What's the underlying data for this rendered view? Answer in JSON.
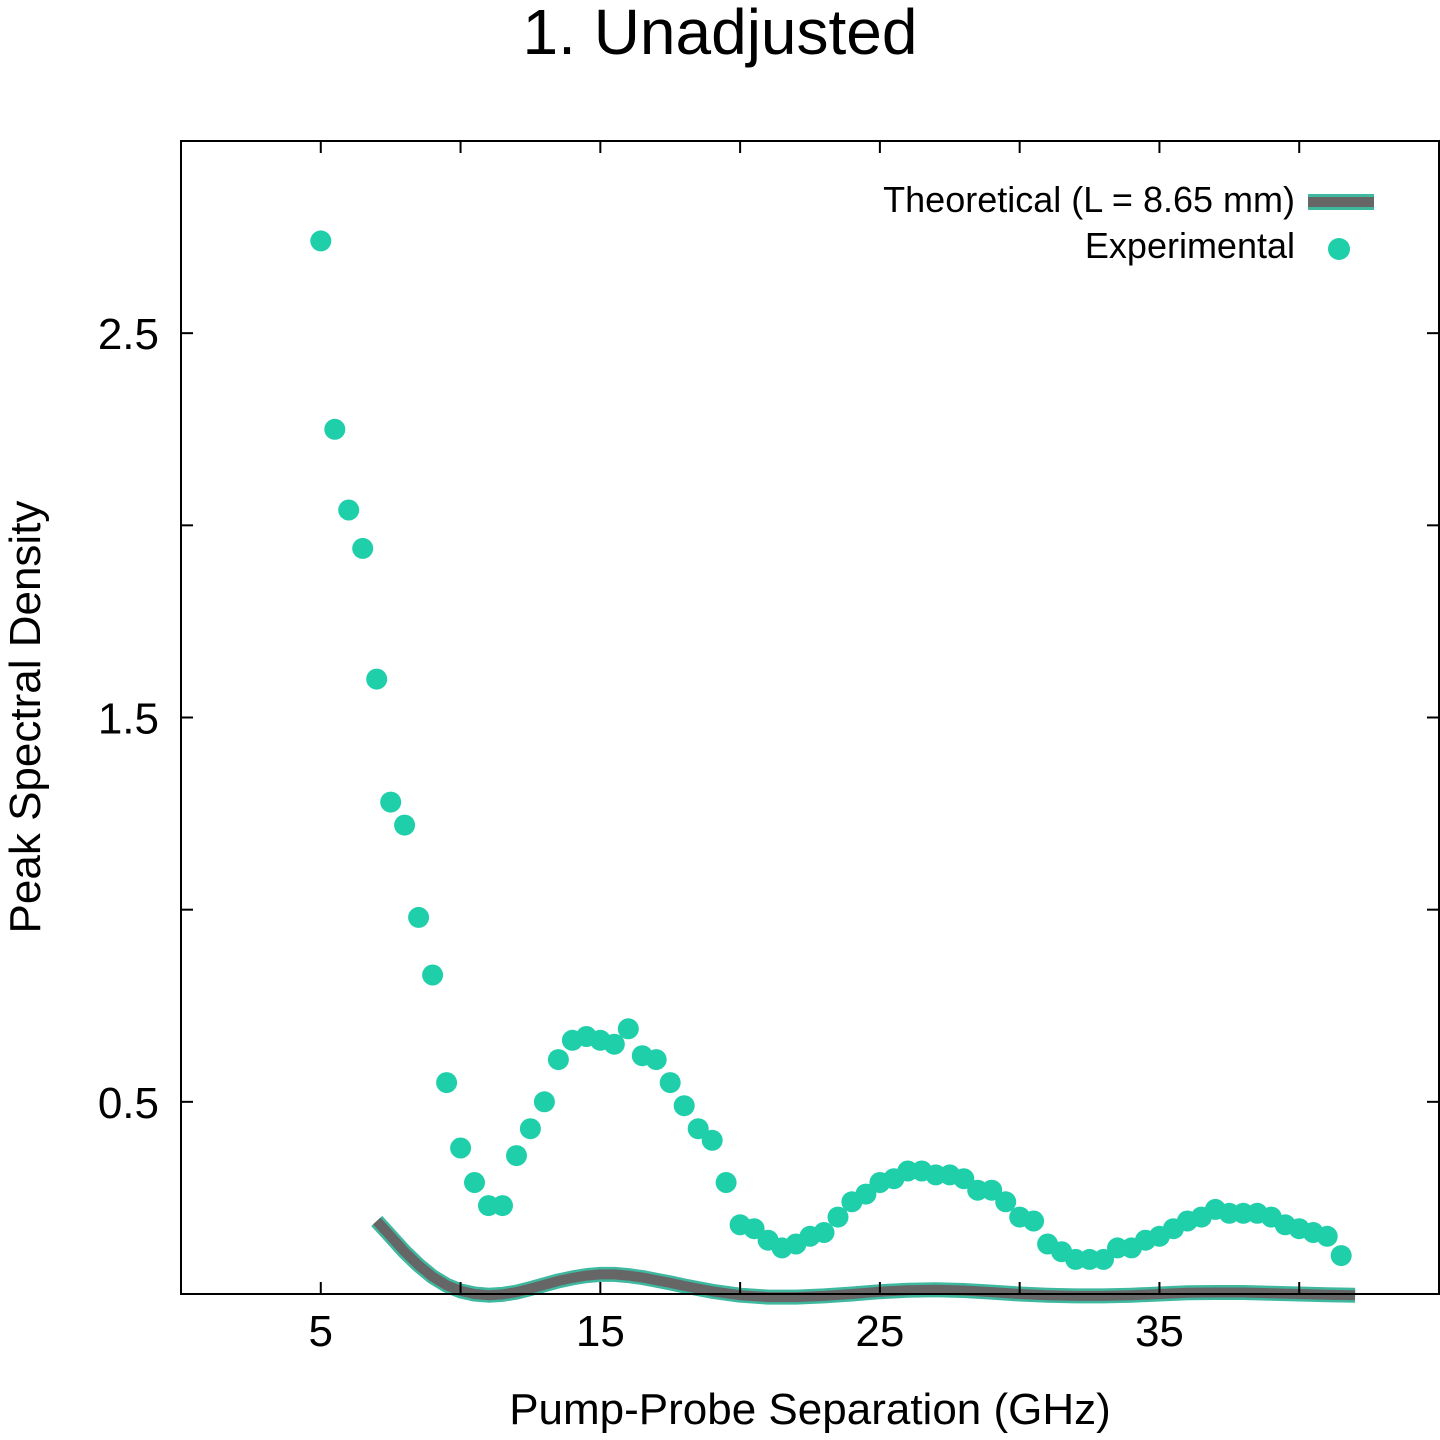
{
  "chart_data": {
    "type": "scatter",
    "title": "1. Unadjusted",
    "xlabel": "Pump-Probe Separation (GHz)",
    "ylabel": "Peak Spectral Density",
    "xlim": [
      0,
      45
    ],
    "ylim": [
      0,
      3.0
    ],
    "x_ticks": [
      {
        "value": 5,
        "label": "5"
      },
      {
        "value": 10,
        "label": ""
      },
      {
        "value": 15,
        "label": "15"
      },
      {
        "value": 20,
        "label": ""
      },
      {
        "value": 25,
        "label": "25"
      },
      {
        "value": 30,
        "label": ""
      },
      {
        "value": 35,
        "label": "35"
      },
      {
        "value": 40,
        "label": ""
      }
    ],
    "y_ticks": [
      {
        "value": 0.5,
        "label": "0.5"
      },
      {
        "value": 1.0,
        "label": ""
      },
      {
        "value": 1.5,
        "label": "1.5"
      },
      {
        "value": 2.0,
        "label": ""
      },
      {
        "value": 2.5,
        "label": "2.5"
      }
    ],
    "grid": false,
    "legend_position": "top-right",
    "series": [
      {
        "name": "Theoretical (L = 8.65 mm)",
        "kind": "line",
        "color": "#666666",
        "edge_color": "#3fb8a0",
        "x": [
          7.0,
          7.5,
          8.0,
          8.5,
          9.0,
          9.5,
          10.0,
          10.5,
          11.0,
          11.5,
          12.0,
          12.5,
          13.0,
          13.5,
          14.0,
          14.5,
          15.0,
          15.5,
          16.0,
          16.5,
          17.0,
          17.5,
          18.0,
          18.5,
          19.0,
          20.0,
          21.0,
          22.0,
          23.0,
          24.0,
          25.0,
          26.0,
          27.0,
          28.0,
          29.0,
          30.0,
          31.0,
          32.0,
          33.0,
          34.0,
          35.0,
          36.0,
          37.0,
          38.0,
          39.0,
          40.0,
          41.0,
          42.0
        ],
        "y": [
          0.19,
          0.15,
          0.11,
          0.075,
          0.045,
          0.023,
          0.008,
          0.0,
          -0.003,
          -0.001,
          0.005,
          0.014,
          0.024,
          0.034,
          0.042,
          0.048,
          0.051,
          0.051,
          0.048,
          0.043,
          0.036,
          0.029,
          0.021,
          0.014,
          0.007,
          -0.003,
          -0.008,
          -0.008,
          -0.005,
          0.0,
          0.006,
          0.01,
          0.011,
          0.009,
          0.005,
          0.0,
          -0.003,
          -0.005,
          -0.005,
          -0.003,
          0.0,
          0.003,
          0.004,
          0.004,
          0.002,
          0.0,
          -0.002,
          -0.003
        ]
      },
      {
        "name": "Experimental",
        "kind": "scatter",
        "color": "#1fcfaa",
        "x": [
          5.0,
          5.5,
          6.0,
          6.5,
          7.0,
          7.5,
          8.0,
          8.5,
          9.0,
          9.5,
          10.0,
          10.5,
          11.0,
          11.5,
          12.0,
          12.5,
          13.0,
          13.5,
          14.0,
          14.5,
          15.0,
          15.5,
          16.0,
          16.5,
          17.0,
          17.5,
          18.0,
          18.5,
          19.0,
          19.5,
          20.0,
          20.5,
          21.0,
          21.5,
          22.0,
          22.5,
          23.0,
          23.5,
          24.0,
          24.5,
          25.0,
          25.5,
          26.0,
          26.5,
          27.0,
          27.5,
          28.0,
          28.5,
          29.0,
          29.5,
          30.0,
          30.5,
          31.0,
          31.5,
          32.0,
          32.5,
          33.0,
          33.5,
          34.0,
          34.5,
          35.0,
          35.5,
          36.0,
          36.5,
          37.0,
          37.5,
          38.0,
          38.5,
          39.0,
          39.5,
          40.0,
          40.5,
          41.0,
          41.5
        ],
        "y": [
          2.74,
          2.25,
          2.04,
          1.94,
          1.6,
          1.28,
          1.22,
          0.98,
          0.83,
          0.55,
          0.38,
          0.29,
          0.23,
          0.23,
          0.36,
          0.43,
          0.5,
          0.61,
          0.66,
          0.67,
          0.66,
          0.65,
          0.69,
          0.62,
          0.61,
          0.55,
          0.49,
          0.43,
          0.4,
          0.29,
          0.18,
          0.17,
          0.14,
          0.12,
          0.13,
          0.15,
          0.16,
          0.2,
          0.24,
          0.26,
          0.29,
          0.3,
          0.32,
          0.32,
          0.31,
          0.31,
          0.3,
          0.27,
          0.27,
          0.24,
          0.2,
          0.19,
          0.13,
          0.11,
          0.09,
          0.09,
          0.09,
          0.12,
          0.12,
          0.14,
          0.15,
          0.17,
          0.19,
          0.2,
          0.22,
          0.21,
          0.21,
          0.21,
          0.2,
          0.18,
          0.17,
          0.16,
          0.15,
          0.1
        ]
      }
    ]
  }
}
